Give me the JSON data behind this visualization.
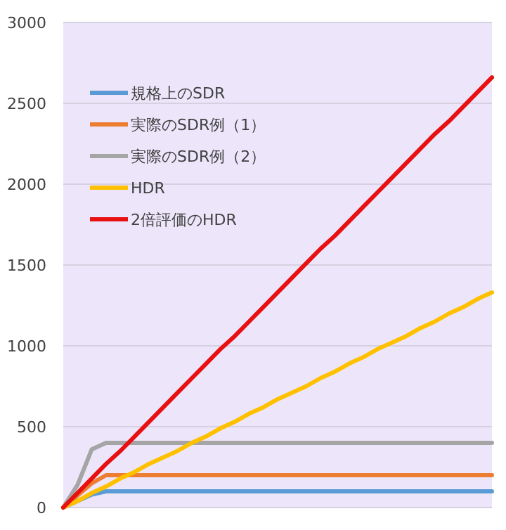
{
  "chart_data": {
    "type": "line",
    "categories": [
      null,
      null,
      null,
      null,
      null,
      null,
      null,
      null,
      null,
      null,
      null,
      null,
      null,
      null,
      null,
      null,
      null,
      null,
      null,
      null,
      null,
      null,
      null,
      null,
      null,
      null,
      null,
      null,
      null,
      null,
      null
    ],
    "series": [
      {
        "name": "規格上のSDR",
        "color": "#5b9bd5",
        "values": [
          0,
          40,
          80,
          100,
          100,
          100,
          100,
          100,
          100,
          100,
          100,
          100,
          100,
          100,
          100,
          100,
          100,
          100,
          100,
          100,
          100,
          100,
          100,
          100,
          100,
          100,
          100,
          100,
          100,
          100,
          100
        ]
      },
      {
        "name": "実際のSDR例（1）",
        "color": "#ed7d31",
        "values": [
          0,
          75,
          150,
          200,
          200,
          200,
          200,
          200,
          200,
          200,
          200,
          200,
          200,
          200,
          200,
          200,
          200,
          200,
          200,
          200,
          200,
          200,
          200,
          200,
          200,
          200,
          200,
          200,
          200,
          200,
          200
        ]
      },
      {
        "name": "実際のSDR例（2）",
        "color": "#a5a5a5",
        "values": [
          0,
          140,
          360,
          400,
          400,
          400,
          400,
          400,
          400,
          400,
          400,
          400,
          400,
          400,
          400,
          400,
          400,
          400,
          400,
          400,
          400,
          400,
          400,
          400,
          400,
          400,
          400,
          400,
          400,
          400,
          400
        ]
      },
      {
        "name": "HDR",
        "color": "#ffc000",
        "values": [
          0,
          40,
          90,
          130,
          180,
          220,
          270,
          310,
          350,
          400,
          440,
          490,
          530,
          580,
          620,
          670,
          710,
          750,
          800,
          840,
          890,
          930,
          980,
          1020,
          1060,
          1110,
          1150,
          1200,
          1240,
          1290,
          1330
        ]
      },
      {
        "name": "2倍評価のHDR",
        "color": "#e81010",
        "values": [
          0,
          90,
          180,
          270,
          350,
          440,
          530,
          620,
          710,
          800,
          890,
          980,
          1060,
          1150,
          1240,
          1330,
          1420,
          1510,
          1600,
          1680,
          1770,
          1860,
          1950,
          2040,
          2130,
          2220,
          2310,
          2390,
          2480,
          2570,
          2660
        ]
      }
    ],
    "ylim": [
      0,
      3000
    ],
    "yticks": [
      0,
      500,
      1000,
      1500,
      2000,
      2500,
      3000
    ],
    "grid": "y",
    "legend": "top left",
    "marker": "none",
    "line_style": "solid"
  }
}
